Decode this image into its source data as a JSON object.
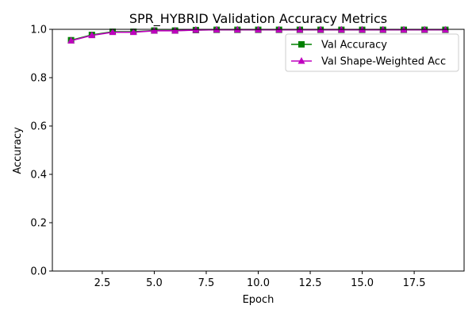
{
  "chart_data": {
    "type": "line",
    "title": "SPR_HYBRID Validation Accuracy Metrics",
    "xlabel": "Epoch",
    "ylabel": "Accuracy",
    "xlim": [
      0.1,
      19.9
    ],
    "ylim": [
      0.0,
      1.0
    ],
    "xticks": [
      2.5,
      5.0,
      7.5,
      10.0,
      12.5,
      15.0,
      17.5
    ],
    "yticks": [
      0.0,
      0.2,
      0.4,
      0.6,
      0.8,
      1.0
    ],
    "grid": false,
    "legend_position": "top-right",
    "x": [
      1,
      2,
      3,
      4,
      5,
      6,
      7,
      8,
      9,
      10,
      11,
      12,
      13,
      14,
      15,
      16,
      17,
      18,
      19
    ],
    "series": [
      {
        "name": "Val Accuracy",
        "color": "#008000",
        "marker": "square",
        "values": [
          0.955,
          0.977,
          0.99,
          0.99,
          0.995,
          0.995,
          0.997,
          0.998,
          0.998,
          0.998,
          0.998,
          0.998,
          0.998,
          0.998,
          0.998,
          0.998,
          0.998,
          0.998,
          0.998
        ]
      },
      {
        "name": "Val Shape-Weighted Acc",
        "color": "#bf00bf",
        "marker": "triangle",
        "values": [
          0.953,
          0.975,
          0.988,
          0.988,
          0.994,
          0.994,
          0.997,
          0.998,
          0.998,
          0.998,
          0.998,
          0.998,
          0.998,
          0.998,
          0.998,
          0.998,
          0.998,
          0.998,
          0.998
        ]
      }
    ]
  }
}
